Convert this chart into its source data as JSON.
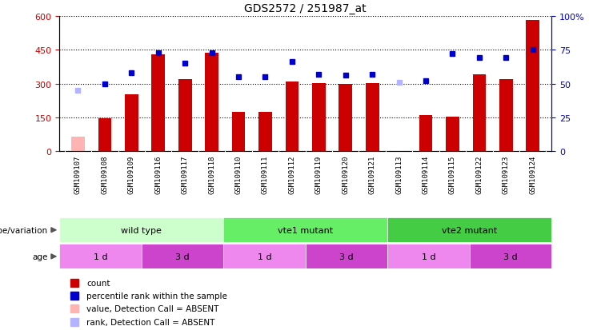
{
  "title": "GDS2572 / 251987_at",
  "samples": [
    "GSM109107",
    "GSM109108",
    "GSM109109",
    "GSM109116",
    "GSM109117",
    "GSM109118",
    "GSM109110",
    "GSM109111",
    "GSM109112",
    "GSM109119",
    "GSM109120",
    "GSM109121",
    "GSM109113",
    "GSM109114",
    "GSM109115",
    "GSM109122",
    "GSM109123",
    "GSM109124"
  ],
  "counts": [
    65,
    148,
    253,
    430,
    318,
    437,
    175,
    175,
    310,
    302,
    297,
    302,
    0,
    160,
    152,
    340,
    320,
    582
  ],
  "rank_values": [
    45,
    50,
    58,
    73,
    65,
    73,
    55,
    55,
    66,
    57,
    56,
    57,
    51,
    52,
    72,
    69,
    69,
    75
  ],
  "absent_idx": [
    0,
    12
  ],
  "count_color": "#cc0000",
  "rank_color": "#0000cc",
  "absent_count_color": "#ffb3b3",
  "absent_rank_color": "#b3b3ff",
  "bar_width": 0.5,
  "ylim_left": [
    0,
    600
  ],
  "ylim_right": [
    0,
    100
  ],
  "yticks_left": [
    0,
    150,
    300,
    450,
    600
  ],
  "yticks_right": [
    0,
    25,
    50,
    75,
    100
  ],
  "genotype_groups": [
    {
      "label": "wild type",
      "start": 0,
      "end": 6,
      "color": "#ccffcc"
    },
    {
      "label": "vte1 mutant",
      "start": 6,
      "end": 12,
      "color": "#66ee66"
    },
    {
      "label": "vte2 mutant",
      "start": 12,
      "end": 18,
      "color": "#44cc44"
    }
  ],
  "age_groups": [
    {
      "label": "1 d",
      "start": 0,
      "end": 3,
      "color": "#ee88ee"
    },
    {
      "label": "3 d",
      "start": 3,
      "end": 6,
      "color": "#cc44cc"
    },
    {
      "label": "1 d",
      "start": 6,
      "end": 9,
      "color": "#ee88ee"
    },
    {
      "label": "3 d",
      "start": 9,
      "end": 12,
      "color": "#cc44cc"
    },
    {
      "label": "1 d",
      "start": 12,
      "end": 15,
      "color": "#ee88ee"
    },
    {
      "label": "3 d",
      "start": 15,
      "end": 18,
      "color": "#cc44cc"
    }
  ],
  "legend_items": [
    {
      "label": "count",
      "color": "#cc0000"
    },
    {
      "label": "percentile rank within the sample",
      "color": "#0000cc"
    },
    {
      "label": "value, Detection Call = ABSENT",
      "color": "#ffb3b3"
    },
    {
      "label": "rank, Detection Call = ABSENT",
      "color": "#b3b3ff"
    }
  ]
}
